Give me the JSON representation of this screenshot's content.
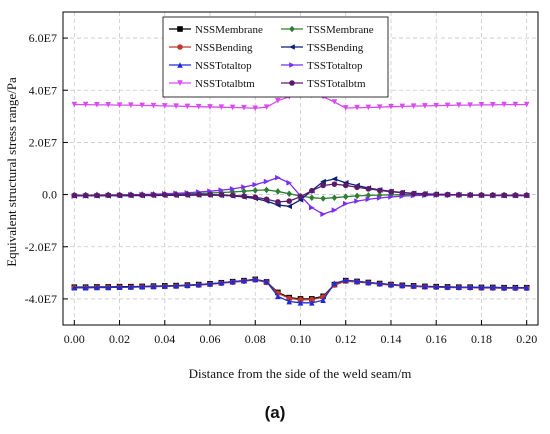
{
  "chart_data": {
    "type": "line",
    "caption": "(a)",
    "xlabel": "Distance from the side of the weld seam/m",
    "ylabel": "Equivalent structural stress range/Pa",
    "xlim": [
      -0.005,
      0.205
    ],
    "ylim": [
      -50000000,
      70000000
    ],
    "x_ticks": [
      0.0,
      0.02,
      0.04,
      0.06,
      0.08,
      0.1,
      0.12,
      0.14,
      0.16,
      0.18,
      0.2
    ],
    "x_tick_labels": [
      "0.00",
      "0.02",
      "0.04",
      "0.06",
      "0.08",
      "0.10",
      "0.12",
      "0.14",
      "0.16",
      "0.18",
      "0.20"
    ],
    "y_ticks": [
      -40000000,
      -20000000,
      0,
      20000000,
      40000000,
      60000000
    ],
    "y_tick_labels": [
      "-4.0E7",
      "-2.0E7",
      "0.0",
      "2.0E7",
      "4.0E7",
      "6.0E7"
    ],
    "grid": true,
    "legend_position": "top-center",
    "x": [
      0.0,
      0.005,
      0.01,
      0.015,
      0.02,
      0.025,
      0.03,
      0.035,
      0.04,
      0.045,
      0.05,
      0.055,
      0.06,
      0.065,
      0.07,
      0.075,
      0.08,
      0.085,
      0.09,
      0.095,
      0.1,
      0.105,
      0.11,
      0.115,
      0.12,
      0.125,
      0.13,
      0.135,
      0.14,
      0.145,
      0.15,
      0.155,
      0.16,
      0.165,
      0.17,
      0.175,
      0.18,
      0.185,
      0.19,
      0.195,
      0.2
    ],
    "series": [
      {
        "name": "NSSMembrane",
        "color": "#000000",
        "marker": "square",
        "values": [
          -35500000,
          -35500000,
          -35400000,
          -35400000,
          -35300000,
          -35300000,
          -35200000,
          -35100000,
          -35000000,
          -34900000,
          -34700000,
          -34500000,
          -34200000,
          -33800000,
          -33400000,
          -33000000,
          -32500000,
          -33500000,
          -37500000,
          -39500000,
          -40000000,
          -40000000,
          -39000000,
          -34500000,
          -33000000,
          -33300000,
          -33700000,
          -34100000,
          -34500000,
          -34800000,
          -35000000,
          -35200000,
          -35300000,
          -35400000,
          -35500000,
          -35500000,
          -35600000,
          -35600000,
          -35700000,
          -35700000,
          -35700000
        ]
      },
      {
        "name": "NSSBending",
        "color": "#c0392b",
        "marker": "circle",
        "values": [
          -35700000,
          -35700000,
          -35600000,
          -35600000,
          -35500000,
          -35500000,
          -35400000,
          -35300000,
          -35200000,
          -35100000,
          -34900000,
          -34700000,
          -34400000,
          -34000000,
          -33600000,
          -33200000,
          -32700000,
          -33700000,
          -37800000,
          -39800000,
          -40300000,
          -40300000,
          -39300000,
          -34700000,
          -33200000,
          -33500000,
          -33900000,
          -34300000,
          -34700000,
          -35000000,
          -35200000,
          -35400000,
          -35500000,
          -35600000,
          -35700000,
          -35700000,
          -35800000,
          -35800000,
          -35900000,
          -35900000,
          -35900000
        ]
      },
      {
        "name": "NSSTotaltop",
        "color": "#1f2bd6",
        "marker": "triangle-up",
        "values": [
          -35700000,
          -35700000,
          -35600000,
          -35600000,
          -35500000,
          -35400000,
          -35300000,
          -35200000,
          -35100000,
          -35000000,
          -34800000,
          -34500000,
          -34200000,
          -33800000,
          -33400000,
          -33000000,
          -32500000,
          -33300000,
          -39000000,
          -41000000,
          -41500000,
          -41500000,
          -40500000,
          -34000000,
          -32800000,
          -33200000,
          -33700000,
          -34100000,
          -34500000,
          -34800000,
          -35000000,
          -35200000,
          -35300000,
          -35400000,
          -35500000,
          -35500000,
          -35600000,
          -35600000,
          -35700000,
          -35700000,
          -35700000
        ]
      },
      {
        "name": "NSSTotalbtm",
        "color": "#d94cf0",
        "marker": "triangle-down",
        "values": [
          34500000,
          34500000,
          34400000,
          34400000,
          34300000,
          34300000,
          34200000,
          34100000,
          34000000,
          33900000,
          33800000,
          33700000,
          33600000,
          33500000,
          33400000,
          33300000,
          33100000,
          33500000,
          36000000,
          37500000,
          38000000,
          38000000,
          37500000,
          35500000,
          33200000,
          33300000,
          33400000,
          33500000,
          33700000,
          33800000,
          33900000,
          34000000,
          34100000,
          34200000,
          34300000,
          34300000,
          34400000,
          34400000,
          34500000,
          34500000,
          34500000
        ]
      },
      {
        "name": "TSSMembrane",
        "color": "#2e7d32",
        "marker": "diamond",
        "values": [
          -200000,
          -200000,
          -150000,
          -100000,
          -100000,
          -50000,
          0,
          50000,
          100000,
          200000,
          300000,
          400000,
          600000,
          800000,
          1000000,
          1300000,
          1600000,
          1800000,
          1200000,
          300000,
          -500000,
          -1200000,
          -1500000,
          -1200000,
          -800000,
          -500000,
          -300000,
          -200000,
          -100000,
          -50000,
          0,
          0,
          -50000,
          -100000,
          -100000,
          -150000,
          -150000,
          -200000,
          -200000,
          -200000,
          -200000
        ]
      },
      {
        "name": "TSSBending",
        "color": "#0b1f7a",
        "marker": "triangle-left",
        "values": [
          -500000,
          -500000,
          -500000,
          -450000,
          -450000,
          -400000,
          -400000,
          -350000,
          -300000,
          -300000,
          -250000,
          -200000,
          -200000,
          -300000,
          -500000,
          -900000,
          -1500000,
          -2500000,
          -4000000,
          -4500000,
          -2000000,
          1500000,
          5000000,
          6000000,
          4500000,
          3500000,
          2500000,
          1800000,
          1200000,
          800000,
          500000,
          300000,
          100000,
          0,
          -100000,
          -200000,
          -300000,
          -300000,
          -400000,
          -400000,
          -400000
        ]
      },
      {
        "name": "TSSTotaltop",
        "color": "#7b2ff0",
        "marker": "triangle-right",
        "values": [
          -600000,
          -500000,
          -400000,
          -300000,
          -200000,
          -100000,
          0,
          100000,
          300000,
          500000,
          700000,
          1000000,
          1300000,
          1700000,
          2200000,
          2900000,
          3800000,
          5000000,
          6500000,
          4500000,
          -500000,
          -5000000,
          -7500000,
          -6000000,
          -3500000,
          -2500000,
          -1800000,
          -1300000,
          -900000,
          -600000,
          -400000,
          -300000,
          -200000,
          -200000,
          -200000,
          -300000,
          -300000,
          -400000,
          -400000,
          -400000,
          -400000
        ]
      },
      {
        "name": "TSSTotalbtm",
        "color": "#5c1a6b",
        "marker": "hexagon",
        "values": [
          -300000,
          -300000,
          -300000,
          -250000,
          -250000,
          -200000,
          -200000,
          -150000,
          -100000,
          -100000,
          -50000,
          0,
          0,
          -100000,
          -300000,
          -600000,
          -1000000,
          -1800000,
          -2800000,
          -2500000,
          -800000,
          1500000,
          3500000,
          4000000,
          3500000,
          2800000,
          2200000,
          1600000,
          1100000,
          700000,
          400000,
          200000,
          100000,
          0,
          -100000,
          -150000,
          -200000,
          -200000,
          -250000,
          -250000,
          -250000
        ]
      }
    ]
  }
}
